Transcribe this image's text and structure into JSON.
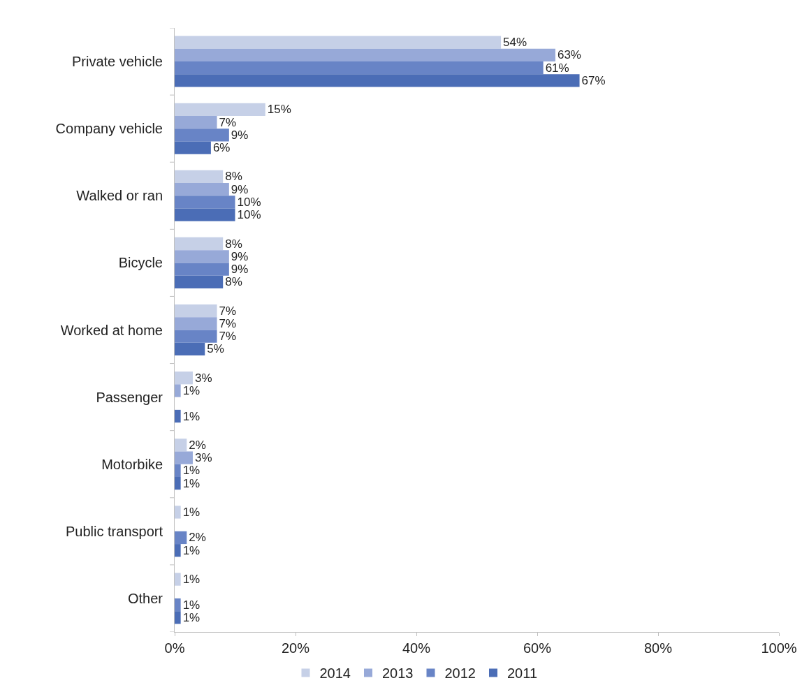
{
  "chart_data": {
    "type": "bar",
    "orientation": "horizontal",
    "categories": [
      "Private vehicle",
      "Company vehicle",
      "Walked or ran",
      "Bicycle",
      "Worked at home",
      "Passenger",
      "Motorbike",
      "Public transport",
      "Other"
    ],
    "series": [
      {
        "name": "2014",
        "color": "#c6d0e7",
        "values": [
          54,
          15,
          8,
          8,
          7,
          3,
          2,
          1,
          1
        ],
        "value_labels": [
          "54%",
          "15%",
          "8%",
          "8%",
          "7%",
          "3%",
          "2%",
          "1%",
          "1%"
        ]
      },
      {
        "name": "2013",
        "color": "#97a9d8",
        "values": [
          63,
          7,
          9,
          9,
          7,
          1,
          3,
          null,
          null
        ],
        "value_labels": [
          "63%",
          "7%",
          "9%",
          "9%",
          "7%",
          "1%",
          "3%",
          null,
          null
        ]
      },
      {
        "name": "2012",
        "color": "#6884c6",
        "values": [
          61,
          9,
          10,
          9,
          7,
          null,
          1,
          2,
          1
        ],
        "value_labels": [
          "61%",
          "9%",
          "10%",
          "9%",
          "7%",
          null,
          "1%",
          "2%",
          "1%"
        ]
      },
      {
        "name": "2011",
        "color": "#4b6db6",
        "values": [
          67,
          6,
          10,
          8,
          5,
          1,
          1,
          1,
          1
        ],
        "value_labels": [
          "67%",
          "6%",
          "10%",
          "8%",
          "5%",
          "1%",
          "1%",
          "1%",
          "1%"
        ]
      }
    ],
    "xlim": [
      0,
      100
    ],
    "xticks": [
      {
        "value": 0,
        "label": "0%"
      },
      {
        "value": 20,
        "label": "20%"
      },
      {
        "value": 40,
        "label": "40%"
      },
      {
        "value": 60,
        "label": "60%"
      },
      {
        "value": 80,
        "label": "80%"
      },
      {
        "value": 100,
        "label": "100%"
      }
    ],
    "grid": false,
    "legend": "bottom"
  }
}
